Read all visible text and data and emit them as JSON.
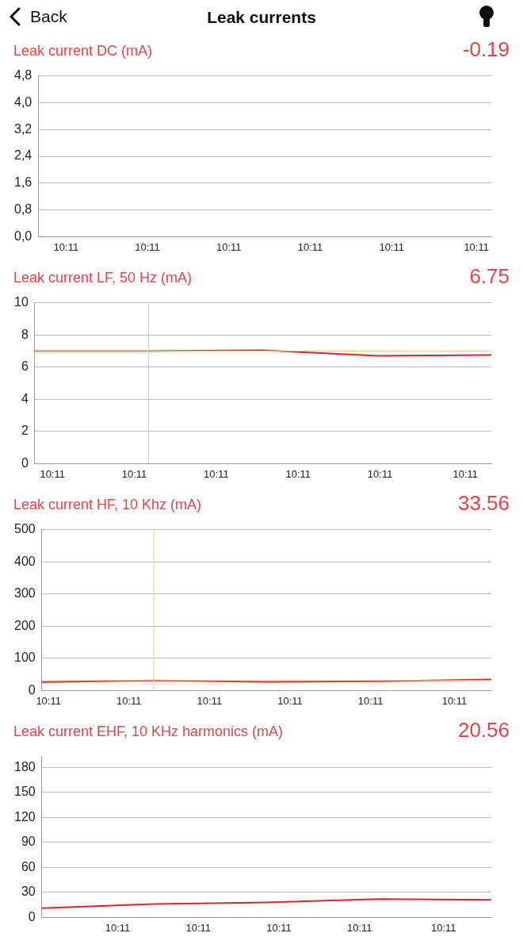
{
  "chart_data": [
    {
      "type": "line",
      "title": "Leak current DC (mA)",
      "annotations": [
        "Back",
        "Leak currents",
        "-0.19"
      ],
      "xlim": [
        10.18339,
        10.19007
      ],
      "xticks": [
        {
          "value": 10.1838,
          "label": "10:11"
        },
        {
          "value": 10.185,
          "label": "10:11"
        },
        {
          "value": 10.1862,
          "label": "10:11"
        },
        {
          "value": 10.1874,
          "label": "10:11"
        },
        {
          "value": 10.1886,
          "label": "10:11"
        },
        {
          "value": 10.18985,
          "label": "10:11"
        }
      ],
      "ylim": [
        0,
        4.8
      ],
      "yticks": [
        {
          "value": 0,
          "label": "0,0"
        },
        {
          "value": 0.8,
          "label": "0,8"
        },
        {
          "value": 1.6,
          "label": "1,6"
        },
        {
          "value": 2.4,
          "label": "2,4"
        },
        {
          "value": 3.2,
          "label": "3,2"
        },
        {
          "value": 4,
          "label": "4,0"
        },
        {
          "value": 4.8,
          "label": "4,8"
        }
      ],
      "grid": "y"
    },
    {
      "type": "line",
      "title": "Leak current LF, 50 Hz (mA)",
      "annotations": [
        "6.75"
      ],
      "x": [
        10.18354,
        10.18521,
        10.18689,
        10.18856,
        10.19023
      ],
      "values": [
        7.0,
        7.0,
        7.05,
        6.7,
        6.75
      ],
      "color": "#d9262c",
      "marker": "none",
      "xlim": [
        10.18354,
        10.19023
      ],
      "xticks": [
        {
          "value": 10.1838,
          "label": "10:11"
        },
        {
          "value": 10.185,
          "label": "10:11"
        },
        {
          "value": 10.1862,
          "label": "10:11"
        },
        {
          "value": 10.1874,
          "label": "10:11"
        },
        {
          "value": 10.1886,
          "label": "10:11"
        },
        {
          "value": 10.18985,
          "label": "10:11"
        }
      ],
      "ylim": [
        0,
        10
      ],
      "yticks": [
        0,
        2,
        4,
        6,
        8,
        10
      ],
      "grid": "y",
      "ref_lines": [
        {
          "axis": "x",
          "value": 10.18521,
          "color": "#f6c88e"
        },
        {
          "axis": "y",
          "value": 7,
          "color": "#f6c88e"
        }
      ]
    },
    {
      "type": "line",
      "title": "Leak current HF, 10 Khz (mA)",
      "annotations": [
        "33.56"
      ],
      "x": [
        10.1837,
        10.18537,
        10.18705,
        10.18872,
        10.1904
      ],
      "values": [
        26,
        31,
        27,
        29,
        34
      ],
      "color": "#d9262c",
      "marker": "none",
      "xlim": [
        10.1837,
        10.1904
      ],
      "xticks": [
        {
          "value": 10.1838,
          "label": "10:11"
        },
        {
          "value": 10.185,
          "label": "10:11"
        },
        {
          "value": 10.1862,
          "label": "10:11"
        },
        {
          "value": 10.1874,
          "label": "10:11"
        },
        {
          "value": 10.1886,
          "label": "10:11"
        },
        {
          "value": 10.18985,
          "label": "10:11"
        }
      ],
      "ylim": [
        0,
        500
      ],
      "yticks": [
        0,
        100,
        200,
        300,
        400,
        500
      ],
      "grid": "y",
      "ref_lines": [
        {
          "axis": "x",
          "value": 10.18537,
          "color": "#f6c88e"
        },
        {
          "axis": "y",
          "value": 31,
          "color": "#f6c88e"
        }
      ]
    },
    {
      "type": "line",
      "title": "Leak current EHF, 10 KHz harmonics (mA)",
      "annotations": [
        "20.56"
      ],
      "x": [
        10.18387,
        10.18554,
        10.18721,
        10.18888,
        10.19056
      ],
      "values": [
        11,
        16,
        18,
        22,
        21
      ],
      "color": "#d9262c",
      "marker": "none",
      "xlim": [
        10.18387,
        10.19056
      ],
      "xticks": [
        {
          "value": 10.185,
          "label": "10:11"
        },
        {
          "value": 10.1862,
          "label": "10:11"
        },
        {
          "value": 10.1874,
          "label": "10:11"
        },
        {
          "value": 10.1886,
          "label": "10:11"
        },
        {
          "value": 10.18985,
          "label": "10:11"
        }
      ],
      "ylim": [
        0,
        193
      ],
      "yticks": [
        0,
        30,
        60,
        90,
        120,
        150,
        180
      ],
      "grid": "y"
    }
  ]
}
